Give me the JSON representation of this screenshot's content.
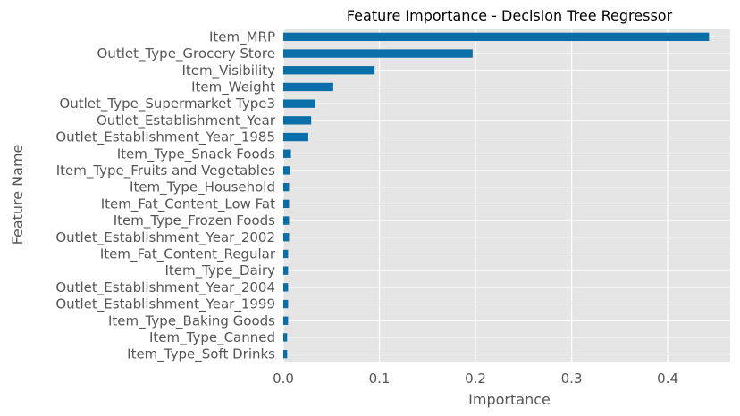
{
  "chart_data": {
    "type": "bar",
    "orientation": "horizontal",
    "title": "Feature Importance - Decision Tree Regressor",
    "xlabel": "Importance",
    "ylabel": "Feature Name",
    "xlim": [
      0,
      0.465
    ],
    "xticks": [
      "0.0",
      "0.1",
      "0.2",
      "0.3",
      "0.4"
    ],
    "grid": true,
    "bar_color": "#0a6ea8",
    "background_color": "#e5e5e5",
    "categories": [
      "Item_MRP",
      "Outlet_Type_Grocery Store",
      "Item_Visibility",
      "Item_Weight",
      "Outlet_Type_Supermarket Type3",
      "Outlet_Establishment_Year",
      "Outlet_Establishment_Year_1985",
      "Item_Type_Snack Foods",
      "Item_Type_Fruits and Vegetables",
      "Item_Type_Household",
      "Item_Fat_Content_Low Fat",
      "Item_Type_Frozen Foods",
      "Outlet_Establishment_Year_2002",
      "Item_Fat_Content_Regular",
      "Item_Type_Dairy",
      "Outlet_Establishment_Year_2004",
      "Outlet_Establishment_Year_1999",
      "Item_Type_Baking Goods",
      "Item_Type_Canned",
      "Item_Type_Soft Drinks"
    ],
    "values": [
      0.443,
      0.197,
      0.095,
      0.052,
      0.033,
      0.029,
      0.026,
      0.008,
      0.007,
      0.006,
      0.006,
      0.006,
      0.006,
      0.005,
      0.005,
      0.005,
      0.005,
      0.005,
      0.004,
      0.004
    ]
  }
}
